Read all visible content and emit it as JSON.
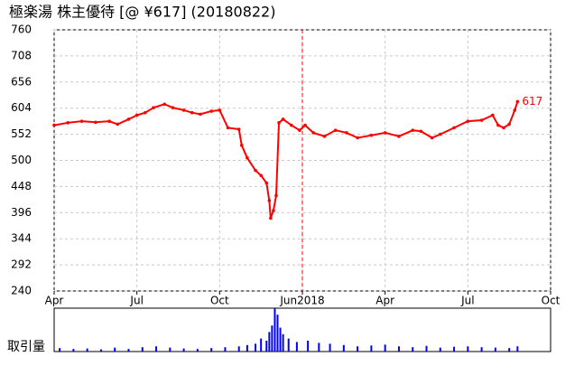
{
  "chart_data": [
    {
      "type": "line",
      "title": "極楽湯 株主優待 [@ ¥617] (20180822)",
      "color": "#ff0000",
      "grid": true,
      "x": [
        0,
        0.5,
        1,
        1.5,
        2,
        2.3,
        2.7,
        3,
        3.3,
        3.6,
        4,
        4.3,
        4.7,
        5,
        5.3,
        5.7,
        6,
        6.3,
        6.7,
        6.8,
        7,
        7.3,
        7.5,
        7.7,
        7.8,
        7.85,
        7.95,
        8.05,
        8.15,
        8.3,
        8.6,
        8.9,
        9.1,
        9.4,
        9.8,
        10.2,
        10.6,
        11,
        11.5,
        12,
        12.5,
        13,
        13.3,
        13.7,
        14,
        14.5,
        15,
        15.5,
        15.9,
        16.1,
        16.3,
        16.5,
        16.7,
        16.8
      ],
      "values": [
        570,
        575,
        578,
        576,
        578,
        572,
        582,
        590,
        595,
        605,
        612,
        605,
        600,
        595,
        592,
        598,
        600,
        565,
        562,
        530,
        505,
        480,
        470,
        455,
        420,
        385,
        400,
        430,
        575,
        582,
        570,
        560,
        570,
        555,
        548,
        560,
        555,
        545,
        550,
        555,
        548,
        560,
        558,
        545,
        552,
        565,
        578,
        580,
        590,
        570,
        565,
        572,
        600,
        617
      ],
      "xlim": [
        0,
        18
      ],
      "xticks": [
        {
          "value": 0,
          "label": "Apr"
        },
        {
          "value": 3,
          "label": "Jul"
        },
        {
          "value": 6,
          "label": "Oct"
        },
        {
          "value": 9,
          "label": "Jun2018"
        },
        {
          "value": 12,
          "label": "Apr"
        },
        {
          "value": 15,
          "label": "Jul"
        },
        {
          "value": 18,
          "label": "Oct"
        }
      ],
      "ylim": [
        240,
        760
      ],
      "yticks": [
        240,
        292,
        344,
        396,
        448,
        500,
        552,
        604,
        656,
        708,
        760
      ],
      "marker_line_x": 9
    },
    {
      "type": "bar",
      "ylabel": "取引量",
      "color": "#0000ff",
      "xlim": [
        0,
        18
      ],
      "ylim": [
        0,
        100
      ],
      "x": [
        0.2,
        0.7,
        1.2,
        1.7,
        2.2,
        2.7,
        3.2,
        3.7,
        4.2,
        4.7,
        5.2,
        5.7,
        6.2,
        6.7,
        7.0,
        7.3,
        7.5,
        7.7,
        7.8,
        7.9,
        8.0,
        8.1,
        8.2,
        8.3,
        8.5,
        8.8,
        9.2,
        9.6,
        10.0,
        10.5,
        11.0,
        11.5,
        12.0,
        12.5,
        13.0,
        13.5,
        14.0,
        14.5,
        15.0,
        15.5,
        16.0,
        16.5,
        16.8
      ],
      "values": [
        8,
        6,
        7,
        5,
        9,
        6,
        10,
        12,
        9,
        7,
        6,
        8,
        10,
        12,
        15,
        18,
        30,
        25,
        45,
        60,
        100,
        85,
        55,
        40,
        30,
        22,
        25,
        20,
        18,
        15,
        12,
        14,
        16,
        12,
        10,
        13,
        9,
        11,
        12,
        10,
        9,
        8,
        12
      ]
    }
  ]
}
